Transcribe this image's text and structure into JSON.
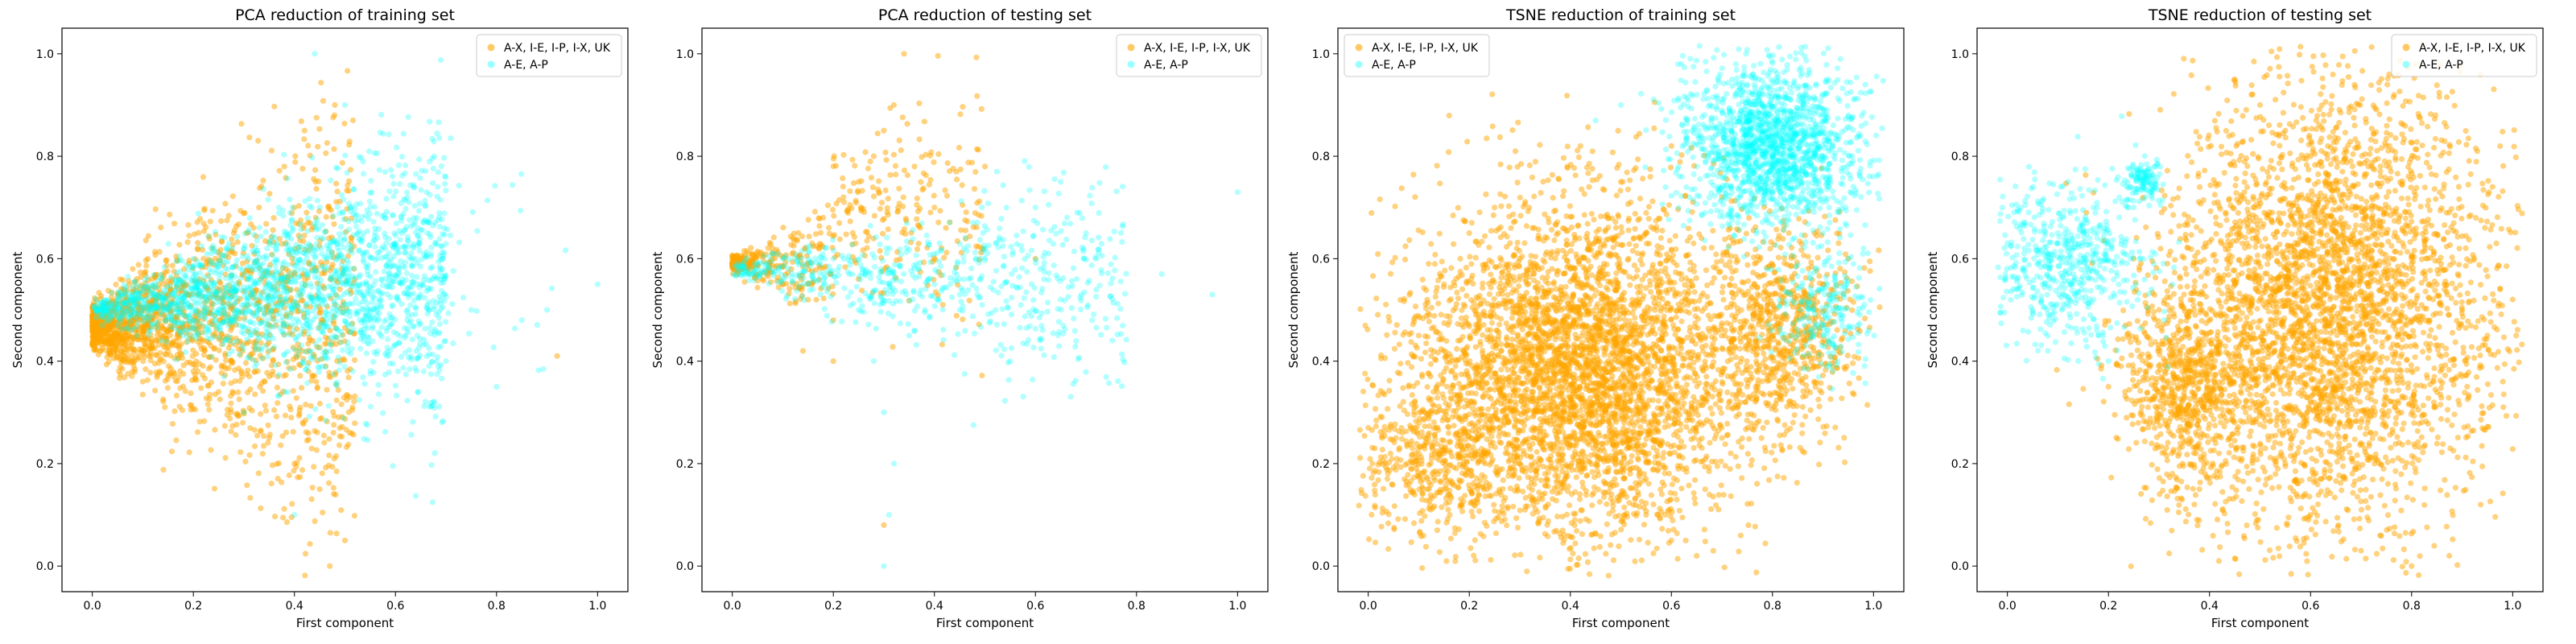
{
  "figure": {
    "background": "#ffffff"
  },
  "chart_data": [
    {
      "type": "scatter",
      "title": "PCA reduction of training set",
      "xlabel": "First component",
      "ylabel": "Second component",
      "xlim": [
        -0.06,
        1.06
      ],
      "ylim": [
        -0.05,
        1.05
      ],
      "xticks": [
        "0.0",
        "0.2",
        "0.4",
        "0.6",
        "0.8",
        "1.0"
      ],
      "yticks": [
        "0.0",
        "0.2",
        "0.4",
        "0.6",
        "0.8",
        "1.0"
      ],
      "grid": false,
      "legend": "top-right",
      "series": [
        {
          "name": "A-X, I-E, I-P, I-X, UK",
          "color": "#ffa500",
          "alpha": 0.5,
          "sample": [
            [
              0.0,
              0.47
            ],
            [
              0.03,
              0.46
            ],
            [
              0.06,
              0.48
            ],
            [
              0.1,
              0.44
            ],
            [
              0.12,
              0.52
            ],
            [
              0.15,
              0.42
            ],
            [
              0.18,
              0.55
            ],
            [
              0.2,
              0.38
            ],
            [
              0.22,
              0.6
            ],
            [
              0.25,
              0.34
            ],
            [
              0.28,
              0.65
            ],
            [
              0.3,
              0.3
            ],
            [
              0.33,
              0.7
            ],
            [
              0.35,
              0.25
            ],
            [
              0.38,
              0.78
            ],
            [
              0.4,
              0.2
            ],
            [
              0.42,
              0.85
            ],
            [
              0.45,
              0.15
            ],
            [
              0.48,
              0.9
            ],
            [
              0.5,
              0.05
            ],
            [
              0.47,
              0.0
            ],
            [
              0.92,
              0.41
            ],
            [
              0.1,
              0.36
            ],
            [
              0.08,
              0.58
            ],
            [
              0.26,
              0.5
            ]
          ]
        },
        {
          "name": "A-E, A-P",
          "color": "#00ffff",
          "alpha": 0.3,
          "sample": [
            [
              0.02,
              0.47
            ],
            [
              0.05,
              0.47
            ],
            [
              0.15,
              0.5
            ],
            [
              0.2,
              0.6
            ],
            [
              0.25,
              0.5
            ],
            [
              0.3,
              0.62
            ],
            [
              0.35,
              0.55
            ],
            [
              0.4,
              0.6
            ],
            [
              0.42,
              0.5
            ],
            [
              0.45,
              0.7
            ],
            [
              0.5,
              0.58
            ],
            [
              0.55,
              0.5
            ],
            [
              0.58,
              0.62
            ],
            [
              0.62,
              0.45
            ],
            [
              0.65,
              0.55
            ],
            [
              0.7,
              0.4
            ],
            [
              0.75,
              0.5
            ],
            [
              0.8,
              0.35
            ],
            [
              0.85,
              0.48
            ],
            [
              0.9,
              0.5
            ],
            [
              1.0,
              0.55
            ],
            [
              0.44,
              1.0
            ],
            [
              0.4,
              0.1
            ],
            [
              0.3,
              0.3
            ],
            [
              0.5,
              0.9
            ]
          ]
        }
      ]
    },
    {
      "type": "scatter",
      "title": "PCA reduction of testing set",
      "xlabel": "First component",
      "ylabel": "Second component",
      "xlim": [
        -0.06,
        1.06
      ],
      "ylim": [
        -0.05,
        1.05
      ],
      "xticks": [
        "0.0",
        "0.2",
        "0.4",
        "0.6",
        "0.8",
        "1.0"
      ],
      "yticks": [
        "0.0",
        "0.2",
        "0.4",
        "0.6",
        "0.8",
        "1.0"
      ],
      "grid": false,
      "legend": "top-right",
      "series": [
        {
          "name": "A-X, I-E, I-P, I-X, UK",
          "color": "#ffa500",
          "alpha": 0.5,
          "sample": [
            [
              0.0,
              0.59
            ],
            [
              0.02,
              0.58
            ],
            [
              0.04,
              0.6
            ],
            [
              0.06,
              0.56
            ],
            [
              0.08,
              0.62
            ],
            [
              0.1,
              0.55
            ],
            [
              0.12,
              0.64
            ],
            [
              0.15,
              0.52
            ],
            [
              0.18,
              0.68
            ],
            [
              0.2,
              0.48
            ],
            [
              0.22,
              0.72
            ],
            [
              0.25,
              0.75
            ],
            [
              0.28,
              0.8
            ],
            [
              0.3,
              0.85
            ],
            [
              0.32,
              0.9
            ],
            [
              0.34,
              1.0
            ],
            [
              0.3,
              0.08
            ],
            [
              0.4,
              0.7
            ],
            [
              0.5,
              0.78
            ],
            [
              0.6,
              0.6
            ],
            [
              0.14,
              0.42
            ],
            [
              0.2,
              0.4
            ]
          ]
        },
        {
          "name": "A-E, A-P",
          "color": "#00ffff",
          "alpha": 0.3,
          "sample": [
            [
              0.01,
              0.59
            ],
            [
              0.05,
              0.58
            ],
            [
              0.1,
              0.6
            ],
            [
              0.15,
              0.55
            ],
            [
              0.2,
              0.6
            ],
            [
              0.25,
              0.5
            ],
            [
              0.28,
              0.4
            ],
            [
              0.3,
              0.3
            ],
            [
              0.32,
              0.2
            ],
            [
              0.31,
              0.1
            ],
            [
              0.3,
              0.0
            ],
            [
              0.35,
              0.45
            ],
            [
              0.4,
              0.55
            ],
            [
              0.45,
              0.5
            ],
            [
              0.5,
              0.62
            ],
            [
              0.55,
              0.4
            ],
            [
              0.6,
              0.7
            ],
            [
              0.65,
              0.75
            ],
            [
              0.7,
              0.65
            ],
            [
              0.72,
              0.6
            ],
            [
              0.85,
              0.57
            ],
            [
              0.95,
              0.53
            ],
            [
              1.0,
              0.73
            ]
          ]
        }
      ]
    },
    {
      "type": "scatter",
      "title": "TSNE reduction of training set",
      "xlabel": "First component",
      "ylabel": "Second component",
      "xlim": [
        -0.06,
        1.06
      ],
      "ylim": [
        -0.05,
        1.05
      ],
      "xticks": [
        "0.0",
        "0.2",
        "0.4",
        "0.6",
        "0.8",
        "1.0"
      ],
      "yticks": [
        "0.0",
        "0.2",
        "0.4",
        "0.6",
        "0.8",
        "1.0"
      ],
      "grid": false,
      "legend": "top-left",
      "series": [
        {
          "name": "A-X, I-E, I-P, I-X, UK",
          "color": "#ffa500",
          "alpha": 0.5,
          "sample": [
            [
              0.0,
              0.27
            ],
            [
              0.08,
              0.35
            ],
            [
              0.1,
              0.45
            ],
            [
              0.15,
              0.55
            ],
            [
              0.2,
              0.65
            ],
            [
              0.25,
              0.7
            ],
            [
              0.3,
              0.6
            ],
            [
              0.35,
              0.5
            ],
            [
              0.4,
              0.4
            ],
            [
              0.45,
              0.3
            ],
            [
              0.5,
              0.2
            ],
            [
              0.55,
              0.1
            ],
            [
              0.6,
              0.05
            ],
            [
              0.65,
              0.02
            ],
            [
              0.7,
              0.25
            ],
            [
              0.75,
              0.35
            ],
            [
              0.8,
              0.45
            ],
            [
              0.85,
              0.5
            ],
            [
              0.9,
              0.55
            ],
            [
              0.95,
              0.6
            ],
            [
              0.5,
              0.75
            ],
            [
              0.42,
              0.82
            ],
            [
              0.6,
              0.82
            ],
            [
              0.7,
              0.72
            ],
            [
              0.3,
              0.2
            ]
          ]
        },
        {
          "name": "A-E, A-P",
          "color": "#00ffff",
          "alpha": 0.3,
          "sample": [
            [
              0.62,
              0.98
            ],
            [
              0.65,
              0.92
            ],
            [
              0.7,
              0.85
            ],
            [
              0.72,
              0.95
            ],
            [
              0.75,
              0.8
            ],
            [
              0.78,
              0.9
            ],
            [
              0.8,
              0.75
            ],
            [
              0.82,
              0.85
            ],
            [
              0.85,
              0.7
            ],
            [
              0.88,
              0.8
            ],
            [
              0.9,
              0.65
            ],
            [
              0.92,
              0.72
            ],
            [
              0.95,
              0.6
            ],
            [
              0.98,
              0.62
            ],
            [
              0.45,
              0.87
            ],
            [
              0.5,
              0.9
            ],
            [
              0.9,
              0.45
            ],
            [
              0.88,
              0.5
            ]
          ]
        }
      ]
    },
    {
      "type": "scatter",
      "title": "TSNE reduction of testing set",
      "xlabel": "First component",
      "ylabel": "Second component",
      "xlim": [
        -0.06,
        1.06
      ],
      "ylim": [
        -0.05,
        1.05
      ],
      "xticks": [
        "0.0",
        "0.2",
        "0.4",
        "0.6",
        "0.8",
        "1.0"
      ],
      "yticks": [
        "0.0",
        "0.2",
        "0.4",
        "0.6",
        "0.8",
        "1.0"
      ],
      "grid": false,
      "legend": "top-right",
      "series": [
        {
          "name": "A-X, I-E, I-P, I-X, UK",
          "color": "#ffa500",
          "alpha": 0.5,
          "sample": [
            [
              0.45,
              0.95
            ],
            [
              0.5,
              0.9
            ],
            [
              0.55,
              0.85
            ],
            [
              0.6,
              0.8
            ],
            [
              0.65,
              0.75
            ],
            [
              0.7,
              0.7
            ],
            [
              0.75,
              0.65
            ],
            [
              0.8,
              0.6
            ],
            [
              0.85,
              0.55
            ],
            [
              0.9,
              0.5
            ],
            [
              0.95,
              0.45
            ],
            [
              0.5,
              0.3
            ],
            [
              0.55,
              0.2
            ],
            [
              0.6,
              0.1
            ],
            [
              0.7,
              0.03
            ],
            [
              0.8,
              0.0
            ],
            [
              0.35,
              0.4
            ],
            [
              0.3,
              0.5
            ],
            [
              0.25,
              0.6
            ],
            [
              0.38,
              0.15
            ],
            [
              0.2,
              0.35
            ]
          ]
        },
        {
          "name": "A-E, A-P",
          "color": "#00ffff",
          "alpha": 0.3,
          "sample": [
            [
              0.0,
              0.63
            ],
            [
              0.03,
              0.58
            ],
            [
              0.05,
              0.5
            ],
            [
              0.07,
              0.55
            ],
            [
              0.1,
              0.65
            ],
            [
              0.12,
              0.75
            ],
            [
              0.15,
              0.6
            ],
            [
              0.18,
              0.45
            ],
            [
              0.2,
              0.4
            ],
            [
              0.22,
              0.55
            ],
            [
              0.25,
              0.7
            ],
            [
              0.28,
              0.75
            ],
            [
              0.08,
              0.42
            ],
            [
              0.14,
              0.4
            ],
            [
              0.17,
              0.7
            ]
          ]
        }
      ]
    }
  ]
}
